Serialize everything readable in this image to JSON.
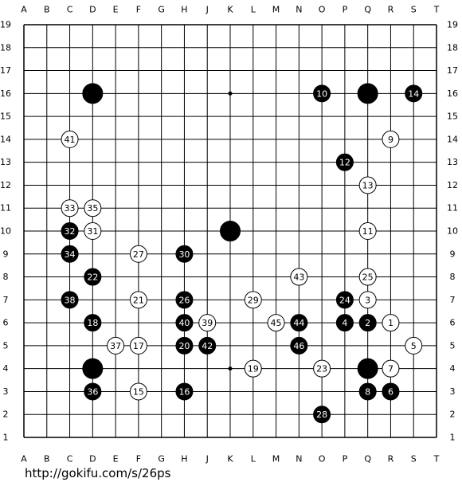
{
  "board": {
    "columns": [
      "A",
      "B",
      "C",
      "D",
      "E",
      "F",
      "G",
      "H",
      "J",
      "K",
      "L",
      "M",
      "N",
      "O",
      "P",
      "Q",
      "R",
      "S",
      "T"
    ],
    "rows": [
      19,
      18,
      17,
      16,
      15,
      14,
      13,
      12,
      11,
      10,
      9,
      8,
      7,
      6,
      5,
      4,
      3,
      2,
      1
    ],
    "stones": [
      {
        "col": "D",
        "row": 16,
        "color": "black"
      },
      {
        "col": "Q",
        "row": 16,
        "color": "black"
      },
      {
        "col": "K",
        "row": 10,
        "color": "black"
      },
      {
        "col": "D",
        "row": 4,
        "color": "black"
      },
      {
        "col": "Q",
        "row": 4,
        "color": "black"
      },
      {
        "col": "R",
        "row": 6,
        "color": "white",
        "move": 1
      },
      {
        "col": "Q",
        "row": 6,
        "color": "black",
        "move": 2
      },
      {
        "col": "Q",
        "row": 7,
        "color": "white",
        "move": 3
      },
      {
        "col": "P",
        "row": 6,
        "color": "black",
        "move": 4
      },
      {
        "col": "S",
        "row": 5,
        "color": "white",
        "move": 5
      },
      {
        "col": "R",
        "row": 3,
        "color": "black",
        "move": 6
      },
      {
        "col": "R",
        "row": 4,
        "color": "white",
        "move": 7
      },
      {
        "col": "Q",
        "row": 3,
        "color": "black",
        "move": 8
      },
      {
        "col": "R",
        "row": 14,
        "color": "white",
        "move": 9
      },
      {
        "col": "O",
        "row": 16,
        "color": "black",
        "move": 10
      },
      {
        "col": "Q",
        "row": 10,
        "color": "white",
        "move": 11
      },
      {
        "col": "P",
        "row": 13,
        "color": "black",
        "move": 12
      },
      {
        "col": "Q",
        "row": 12,
        "color": "white",
        "move": 13
      },
      {
        "col": "S",
        "row": 16,
        "color": "black",
        "move": 14
      },
      {
        "col": "F",
        "row": 3,
        "color": "white",
        "move": 15
      },
      {
        "col": "H",
        "row": 3,
        "color": "black",
        "move": 16
      },
      {
        "col": "F",
        "row": 5,
        "color": "white",
        "move": 17
      },
      {
        "col": "D",
        "row": 6,
        "color": "black",
        "move": 18
      },
      {
        "col": "L",
        "row": 4,
        "color": "white",
        "move": 19
      },
      {
        "col": "H",
        "row": 5,
        "color": "black",
        "move": 20
      },
      {
        "col": "F",
        "row": 7,
        "color": "white",
        "move": 21
      },
      {
        "col": "D",
        "row": 8,
        "color": "black",
        "move": 22
      },
      {
        "col": "O",
        "row": 4,
        "color": "white",
        "move": 23
      },
      {
        "col": "P",
        "row": 7,
        "color": "black",
        "move": 24
      },
      {
        "col": "Q",
        "row": 8,
        "color": "white",
        "move": 25
      },
      {
        "col": "H",
        "row": 7,
        "color": "black",
        "move": 26
      },
      {
        "col": "F",
        "row": 9,
        "color": "white",
        "move": 27
      },
      {
        "col": "O",
        "row": 2,
        "color": "black",
        "move": 28
      },
      {
        "col": "L",
        "row": 7,
        "color": "white",
        "move": 29
      },
      {
        "col": "H",
        "row": 9,
        "color": "black",
        "move": 30
      },
      {
        "col": "D",
        "row": 10,
        "color": "white",
        "move": 31
      },
      {
        "col": "C",
        "row": 10,
        "color": "black",
        "move": 32
      },
      {
        "col": "C",
        "row": 11,
        "color": "white",
        "move": 33
      },
      {
        "col": "C",
        "row": 9,
        "color": "black",
        "move": 34
      },
      {
        "col": "D",
        "row": 11,
        "color": "white",
        "move": 35
      },
      {
        "col": "D",
        "row": 3,
        "color": "black",
        "move": 36
      },
      {
        "col": "E",
        "row": 5,
        "color": "white",
        "move": 37
      },
      {
        "col": "C",
        "row": 7,
        "color": "black",
        "move": 38
      },
      {
        "col": "J",
        "row": 6,
        "color": "white",
        "move": 39
      },
      {
        "col": "H",
        "row": 6,
        "color": "black",
        "move": 40
      },
      {
        "col": "C",
        "row": 14,
        "color": "white",
        "move": 41
      },
      {
        "col": "J",
        "row": 5,
        "color": "black",
        "move": 42
      },
      {
        "col": "N",
        "row": 8,
        "color": "white",
        "move": 43
      },
      {
        "col": "N",
        "row": 6,
        "color": "black",
        "move": 44
      },
      {
        "col": "M",
        "row": 6,
        "color": "white",
        "move": 45
      },
      {
        "col": "N",
        "row": 5,
        "color": "black",
        "move": 46
      }
    ]
  },
  "footer": "http://gokifu.com/s/26ps"
}
